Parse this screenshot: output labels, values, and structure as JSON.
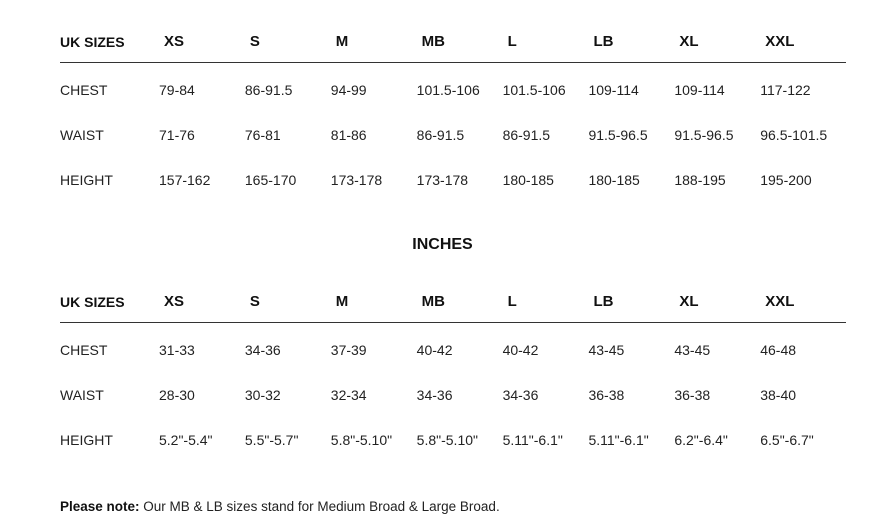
{
  "tables": [
    {
      "header": [
        "UK SIZES",
        "XS",
        "S",
        "M",
        "MB",
        "L",
        "LB",
        "XL",
        "XXL"
      ],
      "rows": [
        [
          "CHEST",
          "79-84",
          "86-91.5",
          "94-99",
          "101.5-106",
          "101.5-106",
          "109-114",
          "109-114",
          "117-122"
        ],
        [
          "WAIST",
          "71-76",
          "76-81",
          "81-86",
          "86-91.5",
          "86-91.5",
          "91.5-96.5",
          "91.5-96.5",
          "96.5-101.5"
        ],
        [
          "HEIGHT",
          "157-162",
          "165-170",
          "173-178",
          "173-178",
          "180-185",
          "180-185",
          "188-195",
          "195-200"
        ]
      ]
    },
    {
      "title": "INCHES",
      "header": [
        "UK SIZES",
        "XS",
        "S",
        "M",
        "MB",
        "L",
        "LB",
        "XL",
        "XXL"
      ],
      "rows": [
        [
          "CHEST",
          "31-33",
          "34-36",
          "37-39",
          "40-42",
          "40-42",
          "43-45",
          "43-45",
          "46-48"
        ],
        [
          "WAIST",
          "28-30",
          "30-32",
          "32-34",
          "34-36",
          "34-36",
          "36-38",
          "36-38",
          "38-40"
        ],
        [
          "HEIGHT",
          "5.2\"-5.4\"",
          "5.5\"-5.7\"",
          "5.8\"-5.10\"",
          "5.8\"-5.10\"",
          "5.11\"-6.1\"",
          "5.11\"-6.1\"",
          "6.2\"-6.4\"",
          "6.5\"-6.7\""
        ]
      ]
    }
  ],
  "note": {
    "label": "Please note:",
    "text": " Our MB & LB sizes stand for Medium Broad & Large Broad."
  }
}
